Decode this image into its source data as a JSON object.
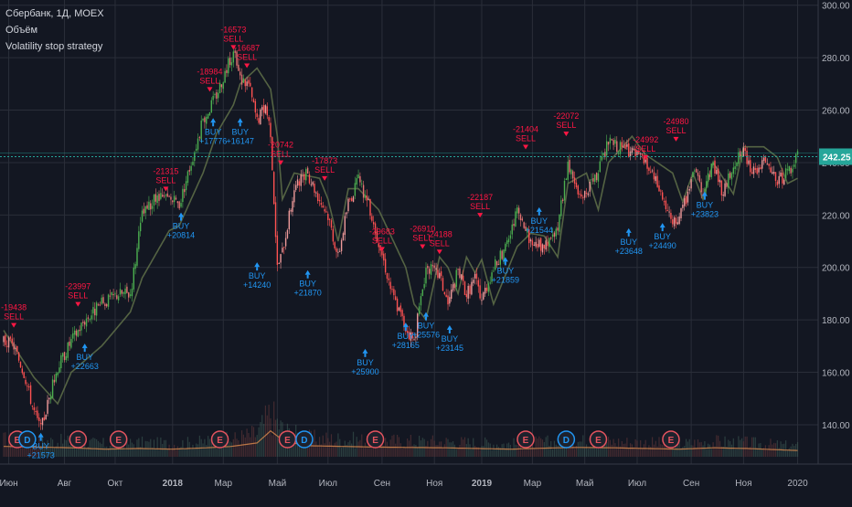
{
  "legend": {
    "symbol": "Сбербанк, 1Д, MOEX",
    "volume": "Объём",
    "strategy": "Volatility stop strategy"
  },
  "colors": {
    "background": "#131722",
    "grid": "#2a2e39",
    "up": "#26a69a",
    "down": "#ef5350",
    "candle_up": "#4caf50",
    "candle_down": "#ff5252",
    "stop_long": "#2e7d32",
    "stop_short": "#b04b55",
    "buy": "#2196f3",
    "sell": "#ff1744",
    "volume_line": "#d2854b",
    "price_tag": "#26a69a",
    "axis_text": "#b2b5be"
  },
  "chart_data": {
    "type": "candlestick",
    "y_axis": {
      "min": 125,
      "max": 302,
      "ticks": [
        "300.00",
        "280.00",
        "260.00",
        "240.00",
        "220.00",
        "200.00",
        "180.00",
        "160.00",
        "140.00"
      ]
    },
    "x_axis": {
      "labels": [
        "Июн",
        "Авг",
        "Окт",
        "2018",
        "Мар",
        "Май",
        "Июл",
        "Сен",
        "Ноя",
        "2019",
        "Мар",
        "Май",
        "Июл",
        "Сен",
        "Ноя",
        "2020"
      ],
      "label_index": [
        3,
        36,
        66,
        100,
        130,
        162,
        192,
        224,
        255,
        283,
        313,
        344,
        375,
        407,
        438,
        470
      ],
      "bold": [
        "2018",
        "2019"
      ]
    },
    "total_bars": 480,
    "last_price": "242.25",
    "last_price_value": 242.25,
    "price_keypoints": [
      [
        0,
        172
      ],
      [
        6,
        170
      ],
      [
        12,
        160
      ],
      [
        18,
        145
      ],
      [
        22,
        138
      ],
      [
        26,
        148
      ],
      [
        32,
        162
      ],
      [
        40,
        172
      ],
      [
        48,
        180
      ],
      [
        58,
        186
      ],
      [
        68,
        190
      ],
      [
        75,
        190
      ],
      [
        82,
        220
      ],
      [
        90,
        226
      ],
      [
        98,
        226
      ],
      [
        104,
        224
      ],
      [
        110,
        238
      ],
      [
        118,
        256
      ],
      [
        126,
        266
      ],
      [
        132,
        276
      ],
      [
        136,
        282
      ],
      [
        140,
        272
      ],
      [
        145,
        270
      ],
      [
        150,
        256
      ],
      [
        155,
        262
      ],
      [
        158,
        252
      ],
      [
        162,
        200
      ],
      [
        165,
        206
      ],
      [
        172,
        230
      ],
      [
        180,
        236
      ],
      [
        187,
        226
      ],
      [
        192,
        220
      ],
      [
        198,
        204
      ],
      [
        204,
        225
      ],
      [
        210,
        233
      ],
      [
        215,
        226
      ],
      [
        222,
        210
      ],
      [
        230,
        190
      ],
      [
        238,
        177
      ],
      [
        243,
        172
      ],
      [
        250,
        200
      ],
      [
        258,
        197
      ],
      [
        263,
        186
      ],
      [
        269,
        199
      ],
      [
        274,
        190
      ],
      [
        279,
        196
      ],
      [
        283,
        188
      ],
      [
        290,
        200
      ],
      [
        297,
        207
      ],
      [
        304,
        221
      ],
      [
        312,
        210
      ],
      [
        320,
        207
      ],
      [
        328,
        215
      ],
      [
        334,
        240
      ],
      [
        340,
        228
      ],
      [
        345,
        228
      ],
      [
        352,
        236
      ],
      [
        358,
        248
      ],
      [
        364,
        246
      ],
      [
        372,
        244
      ],
      [
        380,
        240
      ],
      [
        388,
        230
      ],
      [
        396,
        216
      ],
      [
        402,
        222
      ],
      [
        408,
        236
      ],
      [
        414,
        230
      ],
      [
        420,
        240
      ],
      [
        426,
        228
      ],
      [
        432,
        240
      ],
      [
        438,
        244
      ],
      [
        444,
        236
      ],
      [
        450,
        240
      ],
      [
        458,
        233
      ],
      [
        464,
        236
      ],
      [
        470,
        242.25
      ]
    ],
    "stop_keypoints": [
      [
        0,
        176
      ],
      [
        18,
        158
      ],
      [
        32,
        148
      ],
      [
        40,
        160
      ],
      [
        58,
        170
      ],
      [
        75,
        183
      ],
      [
        82,
        196
      ],
      [
        98,
        214
      ],
      [
        104,
        216
      ],
      [
        118,
        236
      ],
      [
        126,
        251
      ],
      [
        136,
        262
      ],
      [
        140,
        270
      ],
      [
        150,
        276
      ],
      [
        158,
        268
      ],
      [
        162,
        250
      ],
      [
        165,
        226
      ],
      [
        172,
        236
      ],
      [
        187,
        234
      ],
      [
        192,
        226
      ],
      [
        198,
        210
      ],
      [
        204,
        230
      ],
      [
        210,
        230
      ],
      [
        222,
        222
      ],
      [
        238,
        200
      ],
      [
        243,
        186
      ],
      [
        250,
        180
      ],
      [
        258,
        204
      ],
      [
        263,
        200
      ],
      [
        269,
        190
      ],
      [
        274,
        204
      ],
      [
        279,
        198
      ],
      [
        283,
        203
      ],
      [
        290,
        186
      ],
      [
        304,
        208
      ],
      [
        312,
        213
      ],
      [
        320,
        212
      ],
      [
        328,
        204
      ],
      [
        334,
        232
      ],
      [
        345,
        236
      ],
      [
        352,
        222
      ],
      [
        358,
        240
      ],
      [
        372,
        250
      ],
      [
        380,
        243
      ],
      [
        396,
        236
      ],
      [
        402,
        225
      ],
      [
        408,
        236
      ],
      [
        414,
        226
      ],
      [
        420,
        240
      ],
      [
        432,
        228
      ],
      [
        438,
        246
      ],
      [
        450,
        246
      ],
      [
        458,
        242
      ],
      [
        464,
        232
      ],
      [
        470,
        234
      ]
    ],
    "volume_keypoints": [
      [
        0,
        0.3
      ],
      [
        20,
        0.28
      ],
      [
        40,
        0.26
      ],
      [
        60,
        0.22
      ],
      [
        80,
        0.24
      ],
      [
        100,
        0.22
      ],
      [
        120,
        0.26
      ],
      [
        135,
        0.3
      ],
      [
        150,
        0.4
      ],
      [
        158,
        0.75
      ],
      [
        166,
        0.45
      ],
      [
        180,
        0.32
      ],
      [
        200,
        0.3
      ],
      [
        220,
        0.28
      ],
      [
        240,
        0.27
      ],
      [
        260,
        0.26
      ],
      [
        280,
        0.24
      ],
      [
        300,
        0.22
      ],
      [
        320,
        0.25
      ],
      [
        340,
        0.27
      ],
      [
        360,
        0.26
      ],
      [
        380,
        0.24
      ],
      [
        400,
        0.22
      ],
      [
        420,
        0.26
      ],
      [
        440,
        0.24
      ],
      [
        460,
        0.2
      ],
      [
        470,
        0.18
      ]
    ],
    "signals": [
      {
        "side": "SELL",
        "label": "SELL",
        "value": "-19438",
        "bar": 6,
        "price": 176
      },
      {
        "side": "BUY",
        "label": "BUY",
        "value": "+21573",
        "bar": 22,
        "price": 138
      },
      {
        "side": "SELL",
        "label": "SELL",
        "value": "-23997",
        "bar": 44,
        "price": 184
      },
      {
        "side": "BUY",
        "label": "BUY",
        "value": "+22663",
        "bar": 48,
        "price": 172
      },
      {
        "side": "SELL",
        "label": "SELL",
        "value": "-21315",
        "bar": 96,
        "price": 228
      },
      {
        "side": "BUY",
        "label": "BUY",
        "value": "+20814",
        "bar": 105,
        "price": 222
      },
      {
        "side": "SELL",
        "label": "SELL",
        "value": "-18984",
        "bar": 122,
        "price": 266
      },
      {
        "side": "BUY",
        "label": "BUY",
        "value": "+17776",
        "bar": 124,
        "price": 258
      },
      {
        "side": "SELL",
        "label": "SELL",
        "value": "-16573",
        "bar": 136,
        "price": 282
      },
      {
        "side": "SELL",
        "label": "SELL",
        "value": "-16687",
        "bar": 144,
        "price": 275
      },
      {
        "side": "BUY",
        "label": "BUY",
        "value": "+16147",
        "bar": 140,
        "price": 258
      },
      {
        "side": "SELL",
        "label": "SELL",
        "value": "-20742",
        "bar": 164,
        "price": 238
      },
      {
        "side": "BUY",
        "label": "BUY",
        "value": "+14240",
        "bar": 150,
        "price": 203
      },
      {
        "side": "SELL",
        "label": "SELL",
        "value": "-17873",
        "bar": 190,
        "price": 232
      },
      {
        "side": "BUY",
        "label": "BUY",
        "value": "+21870",
        "bar": 180,
        "price": 200
      },
      {
        "side": "SELL",
        "label": "SELL",
        "value": "-29683",
        "bar": 224,
        "price": 205
      },
      {
        "side": "BUY",
        "label": "BUY",
        "value": "+25900",
        "bar": 214,
        "price": 170
      },
      {
        "side": "SELL",
        "label": "SELL",
        "value": "-26910",
        "bar": 248,
        "price": 206
      },
      {
        "side": "BUY",
        "label": "BUY",
        "value": "+28165",
        "bar": 238,
        "price": 180
      },
      {
        "side": "SELL",
        "label": "SELL",
        "value": "-24188",
        "bar": 258,
        "price": 204
      },
      {
        "side": "BUY",
        "label": "BUY",
        "value": "+25576",
        "bar": 250,
        "price": 184
      },
      {
        "side": "SELL",
        "label": "SELL",
        "value": "-22187",
        "bar": 282,
        "price": 218
      },
      {
        "side": "BUY",
        "label": "BUY",
        "value": "+23145",
        "bar": 264,
        "price": 179
      },
      {
        "side": "SELL",
        "label": "SELL",
        "value": "-21404",
        "bar": 309,
        "price": 244
      },
      {
        "side": "BUY",
        "label": "BUY",
        "value": "+21859",
        "bar": 297,
        "price": 205
      },
      {
        "side": "SELL",
        "label": "SELL",
        "value": "-22072",
        "bar": 333,
        "price": 249
      },
      {
        "side": "BUY",
        "label": "BUY",
        "value": "+21544",
        "bar": 317,
        "price": 224
      },
      {
        "side": "SELL",
        "label": "SELL",
        "value": "-24992",
        "bar": 380,
        "price": 240
      },
      {
        "side": "BUY",
        "label": "BUY",
        "value": "+23648",
        "bar": 370,
        "price": 216
      },
      {
        "side": "SELL",
        "label": "SELL",
        "value": "-24980",
        "bar": 398,
        "price": 247
      },
      {
        "side": "BUY",
        "label": "BUY",
        "value": "+24490",
        "bar": 390,
        "price": 218
      },
      {
        "side": "BUY",
        "label": "BUY",
        "value": "+23823",
        "bar": 415,
        "price": 230
      }
    ],
    "events": [
      {
        "type": "E",
        "bar": 8
      },
      {
        "type": "D",
        "bar": 14
      },
      {
        "type": "E",
        "bar": 44
      },
      {
        "type": "E",
        "bar": 68
      },
      {
        "type": "E",
        "bar": 128
      },
      {
        "type": "E",
        "bar": 168
      },
      {
        "type": "D",
        "bar": 178
      },
      {
        "type": "E",
        "bar": 220
      },
      {
        "type": "E",
        "bar": 309
      },
      {
        "type": "D",
        "bar": 333
      },
      {
        "type": "E",
        "bar": 352
      },
      {
        "type": "E",
        "bar": 395
      }
    ]
  }
}
